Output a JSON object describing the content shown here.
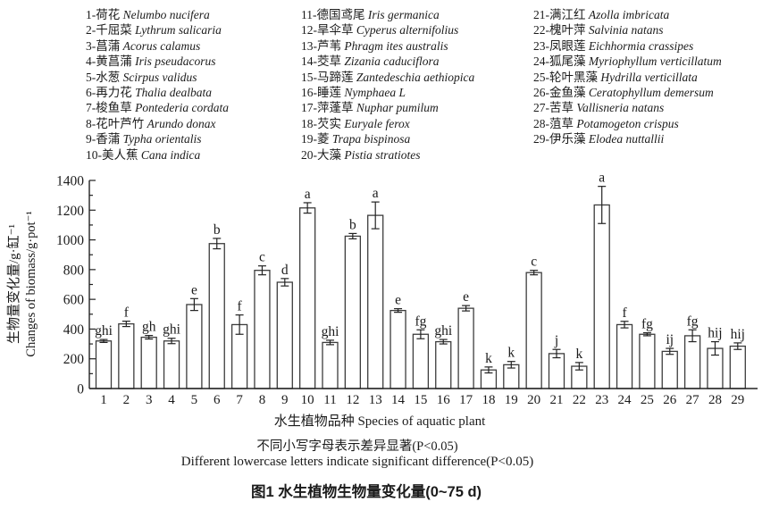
{
  "figure": {
    "legend": {
      "columns": [
        [
          {
            "num_name": "1-荷花",
            "latin": "Nelumbo nucifera"
          },
          {
            "num_name": "2-千屈菜",
            "latin": "Lythrum salicaria"
          },
          {
            "num_name": "3-菖蒲",
            "latin": "Acorus calamus"
          },
          {
            "num_name": "4-黄菖蒲",
            "latin": "Iris pseudacorus"
          },
          {
            "num_name": "5-水葱",
            "latin": "Scirpus validus"
          },
          {
            "num_name": "6-再力花",
            "latin": "Thalia dealbata"
          },
          {
            "num_name": "7-梭鱼草",
            "latin": "Pontederia cordata"
          },
          {
            "num_name": "8-花叶芦竹",
            "latin": "Arundo donax"
          },
          {
            "num_name": "9-香蒲",
            "latin": "Typha orientalis"
          },
          {
            "num_name": "10-美人蕉",
            "latin": "Cana indica"
          }
        ],
        [
          {
            "num_name": "11-德国鸢尾",
            "latin": "Iris germanica"
          },
          {
            "num_name": "12-旱伞草",
            "latin": "Cyperus alternifolius"
          },
          {
            "num_name": "13-芦苇",
            "latin": "Phragm ites australis"
          },
          {
            "num_name": "14-茭草",
            "latin": "Zizania caduciflora"
          },
          {
            "num_name": "15-马蹄莲",
            "latin": "Zantedeschia aethiopica"
          },
          {
            "num_name": "16-睡莲",
            "latin": "Nymphaea L"
          },
          {
            "num_name": "17-萍蓬草",
            "latin": "Nuphar pumilum"
          },
          {
            "num_name": "18-芡实",
            "latin": "Euryale ferox"
          },
          {
            "num_name": "19-菱",
            "latin": "Trapa bispinosa"
          },
          {
            "num_name": "20-大藻",
            "latin": "Pistia stratiotes"
          }
        ],
        [
          {
            "num_name": "21-满江红",
            "latin": "Azolla imbricata"
          },
          {
            "num_name": "22-槐叶萍",
            "latin": "Salvinia natans"
          },
          {
            "num_name": "23-凤眼莲",
            "latin": "Eichhormia crassipes"
          },
          {
            "num_name": "24-狐尾藻",
            "latin": "Myriophyllum verticillatum"
          },
          {
            "num_name": "25-轮叶黑藻",
            "latin": "Hydrilla verticillata"
          },
          {
            "num_name": "26-金鱼藻",
            "latin": "Ceratophyllum demersum"
          },
          {
            "num_name": "27-苦草",
            "latin": "Vallisneria natans"
          },
          {
            "num_name": "28-菹草",
            "latin": "Potamogeton crispus"
          },
          {
            "num_name": "29-伊乐藻",
            "latin": "Elodea nuttallii"
          }
        ]
      ]
    },
    "y_axis": {
      "label_cn": "生物量变化量/g·缸⁻¹",
      "label_en": "Changes of biomass/g·pot⁻¹"
    },
    "x_axis": {
      "label": "水生植物品种 Species of aquatic plant"
    },
    "notes": {
      "cn": "不同小写字母表示差异显著(P<0.05)",
      "en": "Different lowercase letters indicate significant difference(P<0.05)"
    },
    "caption": "图1 水生植物生物量变化量(0~75 d)"
  },
  "chart_data": {
    "type": "bar",
    "title": "图1 水生植物生物量变化量(0~75 d)",
    "xlabel": "水生植物品种 Species of aquatic plant",
    "ylabel": "生物量变化量/g·缸⁻¹ Changes of biomass/g·pot⁻¹",
    "ylim": [
      0,
      1400
    ],
    "ytick_major_step": 200,
    "ytick_minor_step": 100,
    "grid": false,
    "legend_position": "none",
    "bar_fill": "#ffffff",
    "bar_stroke": "#3c3c3c",
    "categories": [
      1,
      2,
      3,
      4,
      5,
      6,
      7,
      8,
      9,
      10,
      11,
      12,
      13,
      14,
      15,
      16,
      17,
      18,
      19,
      20,
      21,
      22,
      23,
      24,
      25,
      26,
      27,
      28,
      29
    ],
    "values": [
      320,
      435,
      345,
      320,
      565,
      975,
      430,
      795,
      715,
      1215,
      310,
      1025,
      1165,
      525,
      365,
      315,
      540,
      125,
      160,
      780,
      235,
      150,
      1235,
      430,
      365,
      250,
      355,
      270,
      285
    ],
    "errors": [
      10,
      18,
      12,
      18,
      40,
      35,
      65,
      30,
      25,
      35,
      15,
      18,
      90,
      12,
      30,
      15,
      18,
      20,
      22,
      15,
      28,
      25,
      125,
      22,
      10,
      20,
      40,
      45,
      22
    ],
    "sig_letters": [
      "ghi",
      "f",
      "gh",
      "ghi",
      "e",
      "b",
      "f",
      "c",
      "d",
      "a",
      "ghi",
      "b",
      "a",
      "e",
      "fg",
      "ghi",
      "e",
      "k",
      "k",
      "c",
      "j",
      "k",
      "a",
      "f",
      "fg",
      "ij",
      "fg",
      "hij",
      "hij"
    ]
  }
}
